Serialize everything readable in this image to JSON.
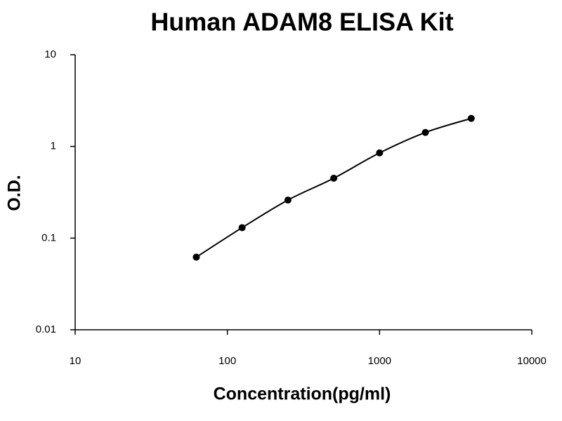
{
  "chart_data": {
    "type": "scatter",
    "title": "Human ADAM8 ELISA Kit",
    "x_label": "Concentration(pg/ml)",
    "y_label": "O.D.",
    "x_scale": "log",
    "y_scale": "log",
    "xlim": [
      10,
      10000
    ],
    "xticks": [
      10,
      100,
      1000,
      10000
    ],
    "ylim": [
      0.01,
      10
    ],
    "yticks": [
      0.01,
      0.1,
      1,
      10
    ],
    "series": [
      {
        "x": [
          62.5,
          125,
          250,
          500,
          1000,
          2000,
          4000
        ],
        "values": [
          0.062,
          0.13,
          0.26,
          0.45,
          0.85,
          1.42,
          2.02
        ],
        "color": "#000000",
        "line": "smooth"
      }
    ]
  }
}
